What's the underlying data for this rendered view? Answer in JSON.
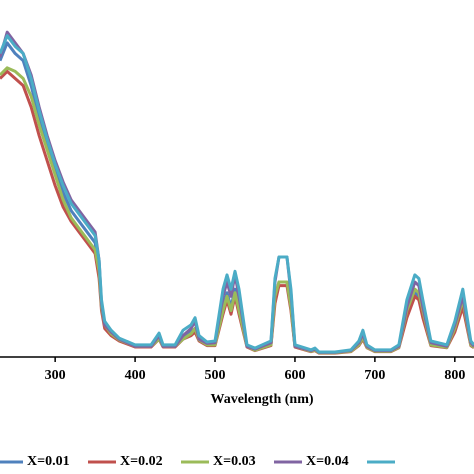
{
  "chart_data": {
    "type": "line",
    "xlabel": "Wavelength (nm)",
    "x": [
      231,
      240,
      250,
      260,
      270,
      280,
      290,
      300,
      310,
      320,
      330,
      340,
      350,
      355,
      358,
      362,
      370,
      380,
      400,
      420,
      430,
      435,
      450,
      460,
      470,
      475,
      480,
      490,
      500,
      510,
      515,
      520,
      525,
      530,
      540,
      550,
      570,
      575,
      580,
      590,
      595,
      600,
      620,
      625,
      630,
      650,
      670,
      680,
      685,
      690,
      700,
      720,
      730,
      740,
      750,
      755,
      760,
      770,
      790,
      800,
      810,
      820,
      824
    ],
    "xlim": [
      231,
      824
    ],
    "xticks": [
      300,
      400,
      500,
      600,
      700,
      800
    ],
    "ylim": [
      0,
      100
    ],
    "legend": "bottom",
    "series": [
      {
        "name": "X=0.01",
        "color": "#4f81bd",
        "values": [
          83,
          88,
          85,
          83,
          76,
          67,
          59,
          52,
          46,
          41,
          38,
          35,
          32,
          25,
          14,
          9,
          7,
          5,
          3,
          3,
          5.5,
          3,
          3,
          5.5,
          7,
          8,
          5,
          3.5,
          3.5,
          14,
          18,
          14,
          19,
          14,
          3,
          2,
          3.5,
          16,
          21,
          21,
          14,
          3,
          1.6,
          2,
          1.2,
          1.2,
          1.6,
          3.5,
          5.5,
          2.8,
          1.6,
          1.6,
          2.8,
          12,
          18,
          17,
          12,
          3.5,
          2.8,
          8,
          15,
          3.5,
          2.8
        ]
      },
      {
        "name": "X=0.02",
        "color": "#c0504d",
        "values": [
          78,
          80,
          78,
          76,
          70,
          62,
          55,
          48,
          42,
          38,
          35,
          32,
          29,
          22,
          13,
          8,
          6,
          4.5,
          2.8,
          2.8,
          5,
          2.8,
          2.8,
          5,
          6,
          7,
          4.5,
          3.2,
          3.2,
          12,
          16,
          12,
          17,
          12,
          2.8,
          1.8,
          3.2,
          15,
          20,
          20,
          13,
          2.8,
          1.5,
          1.8,
          1.1,
          1.1,
          1.5,
          3.2,
          5,
          2.6,
          1.5,
          1.5,
          2.6,
          11,
          17,
          16,
          11,
          3.2,
          2.6,
          7,
          14,
          3.2,
          2.6
        ]
      },
      {
        "name": "X=0.03",
        "color": "#9bbb59",
        "values": [
          79,
          81,
          80,
          78,
          73,
          65,
          58,
          51,
          44,
          39,
          36,
          33,
          30,
          24,
          14,
          9,
          6.5,
          4.8,
          3,
          3,
          5,
          3,
          3,
          5,
          6.5,
          8,
          4.8,
          3.4,
          3.4,
          13,
          17,
          13,
          18,
          13,
          3,
          1.9,
          3.4,
          17,
          21,
          21,
          14,
          3,
          1.6,
          1.9,
          1.2,
          1.2,
          1.6,
          3.4,
          5.5,
          2.7,
          1.6,
          1.6,
          2.7,
          13,
          19,
          18,
          13,
          3.4,
          2.7,
          8,
          16,
          3.4,
          2.7
        ]
      },
      {
        "name": "X=0.04",
        "color": "#8064a2",
        "values": [
          84,
          91,
          88,
          85,
          79,
          70,
          62,
          55,
          49,
          44,
          41,
          38,
          35,
          27,
          15,
          9,
          7,
          5,
          3,
          3,
          6,
          3,
          3,
          6,
          8,
          10,
          5,
          3.8,
          4,
          17,
          21,
          17,
          23,
          17,
          3,
          2.2,
          4,
          21,
          28,
          28,
          18,
          3,
          1.8,
          2.2,
          1.3,
          1.3,
          1.8,
          4,
          6.5,
          3,
          1.8,
          1.8,
          3,
          14,
          21,
          20,
          14,
          4,
          3,
          9,
          17,
          4,
          3
        ]
      },
      {
        "name": null,
        "color": "#4bacc6",
        "values": [
          85,
          90,
          87,
          85,
          78,
          69,
          61,
          54,
          48,
          43,
          40,
          37,
          34,
          27,
          16,
          10,
          7.5,
          5.3,
          3.4,
          3.4,
          6.7,
          3.4,
          3.4,
          7.5,
          9,
          11,
          6,
          4.2,
          4.5,
          19,
          23,
          19,
          24,
          19,
          3.4,
          2.5,
          4.5,
          22,
          28,
          28,
          19,
          3.4,
          2,
          2.5,
          1.4,
          1.4,
          2,
          4.5,
          7.5,
          3.4,
          2,
          2,
          3.4,
          16,
          23,
          22,
          16,
          4.5,
          3.4,
          10,
          19,
          4.5,
          3.4
        ]
      }
    ]
  }
}
